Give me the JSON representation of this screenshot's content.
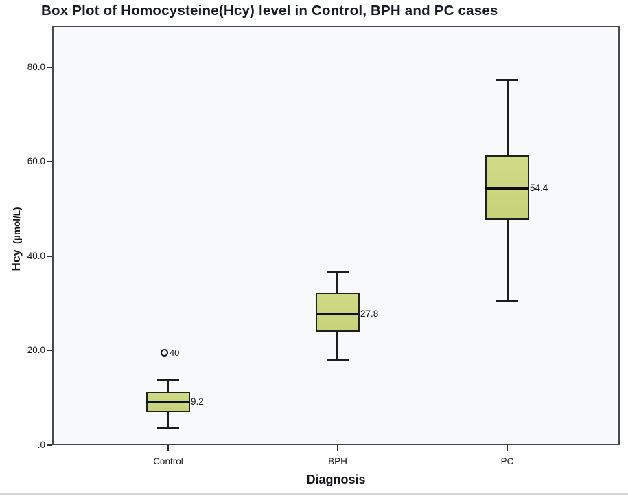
{
  "title": "Box Plot of Homocysteine(Hcy) level in Control, BPH and PC cases",
  "chart_data": {
    "type": "boxplot",
    "title": "Box Plot of Homocysteine(Hcy) level in Control, BPH and PC cases",
    "xlabel": "Diagnosis",
    "ylabel": "Hcy (μmol/L)",
    "ylabel_main": "Hcy",
    "ylabel_unit": "(μmol/L)",
    "ylim": [
      0,
      88.7
    ],
    "grid": false,
    "legend": false,
    "yticks": [
      {
        "value": 80,
        "label": "80.0"
      },
      {
        "value": 60,
        "label": "60.0"
      },
      {
        "value": 40,
        "label": "40.0"
      },
      {
        "value": 20,
        "label": "20.0"
      },
      {
        "value": 0,
        "label": ".0"
      }
    ],
    "categories": [
      "Control",
      "BPH",
      "PC"
    ],
    "series": [
      {
        "category": "Control",
        "x_frac": 0.2043,
        "whisker_low": 3.7,
        "q1": 7.0,
        "median": 9.2,
        "q3": 11.4,
        "whisker_high": 13.8,
        "median_label": "9.2",
        "outliers": [
          {
            "value": 19.5,
            "label": "40"
          }
        ]
      },
      {
        "category": "BPH",
        "x_frac": 0.503,
        "whisker_low": 18.1,
        "q1": 24.0,
        "median": 27.8,
        "q3": 32.3,
        "whisker_high": 36.6,
        "median_label": "27.8",
        "outliers": []
      },
      {
        "category": "PC",
        "x_frac": 0.8017,
        "whisker_low": 30.6,
        "q1": 47.7,
        "median": 54.4,
        "q3": 61.3,
        "whisker_high": 77.4,
        "median_label": "54.4",
        "outliers": []
      }
    ],
    "colors": {
      "box_fill": "#cdd87d",
      "box_border": "#1e2021",
      "whisker": "#1b1d1e",
      "median": "#0e0f10",
      "plot_background": "#f7f9fa",
      "plot_border": "#45494d",
      "text": "#16181a"
    }
  }
}
